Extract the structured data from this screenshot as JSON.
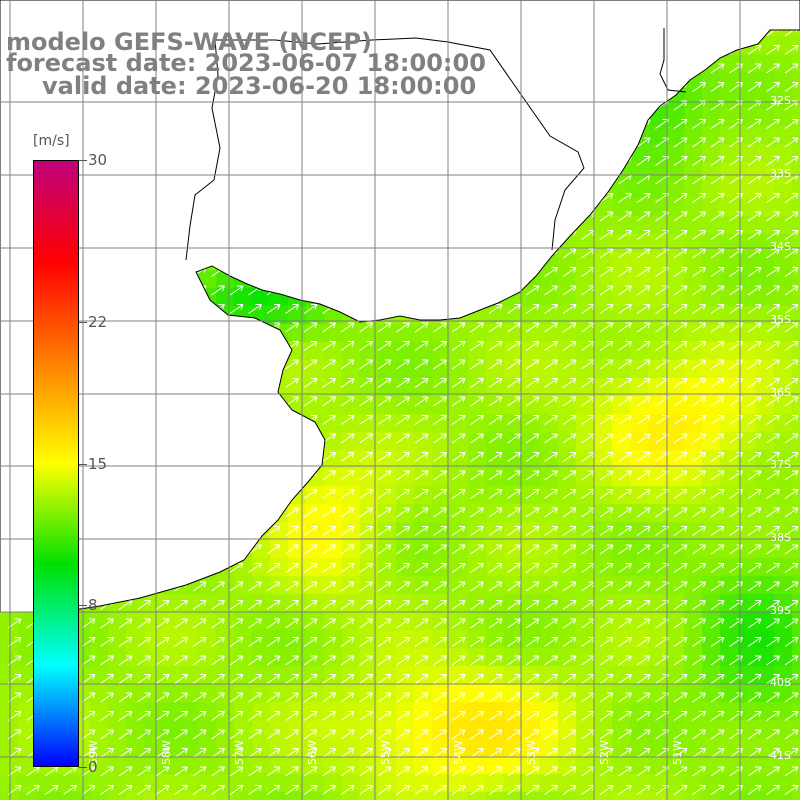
{
  "title": {
    "line1": "modelo GEFS-WAVE (NCEP)",
    "line2": "forecast date: 2023-06-07 18:00:00",
    "line3": "valid date: 2023-06-20 18:00:00"
  },
  "colorbar": {
    "unit": "[m/s]",
    "min": 0,
    "max": 30,
    "ticks": [
      "30",
      "22",
      "15",
      "8",
      "0"
    ],
    "colors": [
      "#c0007c",
      "#ff0000",
      "#ff8000",
      "#ffff00",
      "#00e000",
      "#00ffff",
      "#0000ff"
    ]
  },
  "lat_labels": [
    "32S",
    "33S",
    "34S",
    "35S",
    "36S",
    "37S",
    "38S",
    "39S",
    "40S",
    "41S"
  ],
  "lon_labels": [
    "59W",
    "58W",
    "57W",
    "56W",
    "55W",
    "54W",
    "53W",
    "52W",
    "51W"
  ],
  "field": {
    "quantity": "wind speed",
    "wind_direction": "from southwest, pointing northeast",
    "typical_speed_ms": 13,
    "max_speed_ms": 16
  },
  "colors": {
    "background": "#ffffff",
    "land_outline": "#000000",
    "grid": "#808080",
    "arrows": "#ffffff",
    "title": "#808080"
  }
}
